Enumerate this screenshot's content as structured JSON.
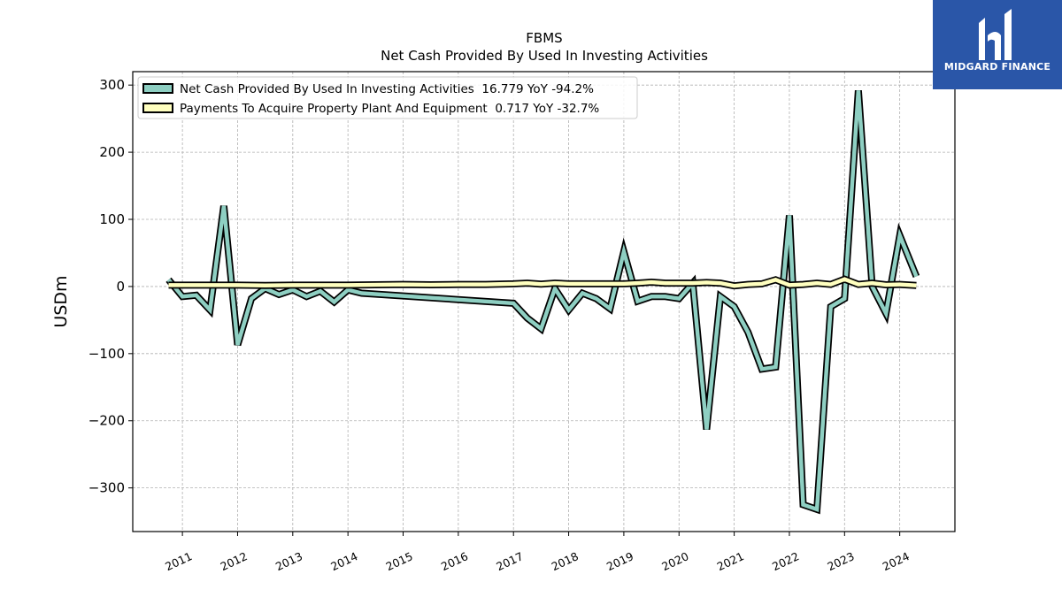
{
  "chart_data": {
    "type": "line",
    "title": "FBMS",
    "subtitle": "Net Cash Provided By Used In Investing Activities",
    "ylabel": "USDm",
    "xlabel": "",
    "ylim": [
      -365,
      320
    ],
    "xlim": [
      2010.1,
      2025.0
    ],
    "yticks": [
      -300,
      -200,
      -100,
      0,
      100,
      200,
      300
    ],
    "ytick_labels": [
      "−300",
      "−200",
      "−100",
      "0",
      "100",
      "200",
      "300"
    ],
    "xticks": [
      2011,
      2012,
      2013,
      2014,
      2015,
      2016,
      2017,
      2018,
      2019,
      2020,
      2021,
      2022,
      2023,
      2024
    ],
    "xtick_labels": [
      "2011",
      "2012",
      "2013",
      "2014",
      "2015",
      "2016",
      "2017",
      "2018",
      "2019",
      "2020",
      "2021",
      "2022",
      "2023",
      "2024"
    ],
    "grid": true,
    "legend_position": "top-left",
    "series": [
      {
        "name": "Net Cash Provided By Used In Investing Activities  16.779 YoY -94.2%",
        "color": "#8ecfc2",
        "points": [
          [
            2010.75,
            10
          ],
          [
            2011.0,
            -15
          ],
          [
            2011.25,
            -13
          ],
          [
            2011.5,
            -35
          ],
          [
            2011.75,
            120
          ],
          [
            2012.0,
            -87
          ],
          [
            2012.25,
            -18
          ],
          [
            2012.5,
            -3
          ],
          [
            2012.75,
            -12
          ],
          [
            2013.0,
            -5
          ],
          [
            2013.25,
            -15
          ],
          [
            2013.5,
            -7
          ],
          [
            2013.75,
            -23
          ],
          [
            2014.0,
            -5
          ],
          [
            2014.25,
            -10
          ],
          [
            2017.0,
            -25
          ],
          [
            2017.25,
            -47
          ],
          [
            2017.5,
            -63
          ],
          [
            2017.75,
            -3
          ],
          [
            2018.0,
            -35
          ],
          [
            2018.25,
            -10
          ],
          [
            2018.5,
            -18
          ],
          [
            2018.75,
            -33
          ],
          [
            2019.0,
            52
          ],
          [
            2019.25,
            -22
          ],
          [
            2019.5,
            -15
          ],
          [
            2019.75,
            -15
          ],
          [
            2020.0,
            -18
          ],
          [
            2020.25,
            5
          ],
          [
            2020.5,
            -213
          ],
          [
            2020.75,
            -15
          ],
          [
            2021.0,
            -30
          ],
          [
            2021.25,
            -68
          ],
          [
            2021.5,
            -123
          ],
          [
            2021.75,
            -120
          ],
          [
            2022.0,
            106
          ],
          [
            2022.25,
            -325
          ],
          [
            2022.5,
            -332
          ],
          [
            2022.75,
            -30
          ],
          [
            2023.0,
            -18
          ],
          [
            2023.25,
            292
          ],
          [
            2023.5,
            0
          ],
          [
            2023.75,
            -40
          ],
          [
            2024.0,
            76
          ],
          [
            2024.3,
            15
          ]
        ]
      },
      {
        "name": "Payments To Acquire Property Plant And Equipment  0.717 YoY -32.7%",
        "color": "#ffffbf",
        "points": [
          [
            2010.75,
            2
          ],
          [
            2011.0,
            2
          ],
          [
            2011.5,
            2
          ],
          [
            2012.0,
            2
          ],
          [
            2012.5,
            1.5
          ],
          [
            2013.0,
            2
          ],
          [
            2013.5,
            2
          ],
          [
            2014.0,
            2
          ],
          [
            2014.5,
            2.5
          ],
          [
            2015.0,
            3
          ],
          [
            2015.5,
            2.5
          ],
          [
            2016.0,
            3
          ],
          [
            2016.5,
            3
          ],
          [
            2017.0,
            4
          ],
          [
            2017.25,
            5
          ],
          [
            2017.5,
            3.5
          ],
          [
            2017.75,
            5
          ],
          [
            2018.0,
            4
          ],
          [
            2018.5,
            4
          ],
          [
            2019.0,
            4
          ],
          [
            2019.25,
            5
          ],
          [
            2019.5,
            6.5
          ],
          [
            2019.75,
            5
          ],
          [
            2020.0,
            5
          ],
          [
            2020.25,
            5
          ],
          [
            2020.5,
            6
          ],
          [
            2020.75,
            5
          ],
          [
            2021.0,
            1
          ],
          [
            2021.25,
            3
          ],
          [
            2021.5,
            4
          ],
          [
            2021.75,
            10
          ],
          [
            2022.0,
            2
          ],
          [
            2022.25,
            3
          ],
          [
            2022.5,
            5
          ],
          [
            2022.75,
            3
          ],
          [
            2023.0,
            11
          ],
          [
            2023.25,
            3
          ],
          [
            2023.5,
            5
          ],
          [
            2023.75,
            2.5
          ],
          [
            2024.0,
            3
          ],
          [
            2024.3,
            1.5
          ]
        ]
      }
    ]
  },
  "logo": {
    "text": "MIDGARD FINANCE",
    "mark": "MF-monogram",
    "background": "#2a56a8"
  }
}
